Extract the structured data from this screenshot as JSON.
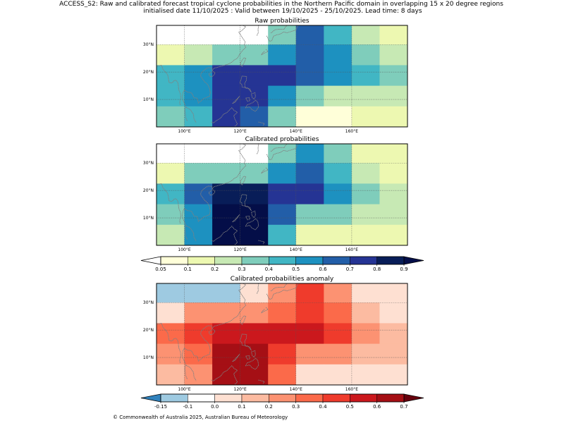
{
  "figure": {
    "title_line1": "ACCESS_S2: Raw and calibrated forecast tropical cyclone probabilities in the Northern Pacific domain in overlapping 15 x 20 degree regions",
    "title_line2": "initialised date 11/10/2025 :  Valid between 19/10/2025 - 25/10/2025. Lead time: 8 days",
    "footer": "© Commonwealth of Australia 2025, Australian Bureau of Meteorology"
  },
  "chart_data": [
    {
      "type": "heatmap",
      "title": "Raw probabilities",
      "x_ticks": [
        "100°E",
        "120°E",
        "140°E",
        "160°E"
      ],
      "y_ticks": [
        "30°N",
        "20°N",
        "10°N"
      ],
      "columns_lon_start": [
        90,
        100,
        110,
        120,
        130,
        140,
        150,
        160,
        170
      ],
      "rows_lat_start": [
        30,
        22.5,
        15,
        7.5,
        0
      ],
      "cell_width_deg": 10,
      "cell_height_deg": 7.5,
      "extent": {
        "lon": [
          90,
          180
        ],
        "lat": [
          0,
          37
        ]
      },
      "values": [
        [
          0.02,
          0.02,
          0.02,
          0.02,
          0.35,
          0.65,
          0.45,
          0.25,
          0.15
        ],
        [
          0.15,
          0.25,
          0.35,
          0.35,
          0.55,
          0.65,
          0.55,
          0.35,
          0.25
        ],
        [
          0.45,
          0.55,
          0.75,
          0.75,
          0.75,
          0.65,
          0.55,
          0.45,
          0.35
        ],
        [
          0.45,
          0.55,
          0.75,
          0.75,
          0.55,
          0.35,
          0.25,
          0.25,
          0.25
        ],
        [
          0.35,
          0.45,
          0.75,
          0.65,
          0.35,
          0.05,
          0.05,
          0.15,
          0.15
        ]
      ]
    },
    {
      "type": "heatmap",
      "title": "Calibrated probabilities",
      "x_ticks": [
        "100°E",
        "120°E",
        "140°E",
        "160°E"
      ],
      "y_ticks": [
        "30°N",
        "20°N",
        "10°N"
      ],
      "columns_lon_start": [
        90,
        100,
        110,
        120,
        130,
        140,
        150,
        160,
        170
      ],
      "rows_lat_start": [
        30,
        22.5,
        15,
        7.5,
        0
      ],
      "cell_width_deg": 10,
      "cell_height_deg": 7.5,
      "extent": {
        "lon": [
          90,
          180
        ],
        "lat": [
          0,
          37
        ]
      },
      "values": [
        [
          0.02,
          0.02,
          0.02,
          0.02,
          0.35,
          0.55,
          0.35,
          0.15,
          0.15
        ],
        [
          0.15,
          0.35,
          0.35,
          0.35,
          0.55,
          0.65,
          0.45,
          0.25,
          0.15
        ],
        [
          0.45,
          0.65,
          0.85,
          0.85,
          0.75,
          0.75,
          0.55,
          0.35,
          0.25
        ],
        [
          0.35,
          0.55,
          0.95,
          0.95,
          0.65,
          0.35,
          0.35,
          0.25,
          0.25
        ],
        [
          0.25,
          0.55,
          0.95,
          0.95,
          0.45,
          0.15,
          0.15,
          0.15,
          0.15
        ]
      ]
    },
    {
      "type": "heatmap",
      "title": "Calibrated probabilities anomaly",
      "x_ticks": [
        "100°E",
        "120°E",
        "140°E",
        "160°E"
      ],
      "y_ticks": [
        "30°N",
        "20°N",
        "10°N"
      ],
      "columns_lon_start": [
        90,
        100,
        110,
        120,
        130,
        140,
        150,
        160,
        170
      ],
      "rows_lat_start": [
        30,
        22.5,
        15,
        7.5,
        0
      ],
      "cell_width_deg": 10,
      "cell_height_deg": 7.5,
      "extent": {
        "lon": [
          90,
          180
        ],
        "lat": [
          0,
          37
        ]
      },
      "values": [
        [
          -0.12,
          -0.12,
          -0.12,
          0.0,
          0.25,
          0.45,
          0.25,
          0.0,
          0.0
        ],
        [
          0.0,
          0.2,
          0.2,
          0.2,
          0.35,
          0.45,
          0.3,
          0.1,
          0.0
        ],
        [
          0.35,
          0.45,
          0.55,
          0.55,
          0.55,
          0.55,
          0.45,
          0.2,
          0.1
        ],
        [
          0.2,
          0.35,
          0.65,
          0.65,
          0.45,
          0.2,
          0.2,
          0.1,
          0.1
        ],
        [
          0.1,
          0.25,
          0.65,
          0.65,
          0.35,
          0.0,
          0.0,
          0.0,
          0.0
        ]
      ]
    }
  ],
  "colorbars": {
    "probability": {
      "ticks": [
        "0.05",
        "0.1",
        "0.2",
        "0.3",
        "0.4",
        "0.5",
        "0.6",
        "0.7",
        "0.8",
        "0.9"
      ],
      "boundaries": [
        0.05,
        0.1,
        0.2,
        0.3,
        0.4,
        0.5,
        0.6,
        0.7,
        0.8,
        0.9
      ],
      "colors": [
        "#ffffd9",
        "#edf8b1",
        "#c7e9b4",
        "#7fcdbb",
        "#41b6c4",
        "#1d91c0",
        "#225ea8",
        "#253494",
        "#081d58"
      ],
      "under_color": "#ffffff",
      "over_color": "#040e48"
    },
    "anomaly": {
      "ticks": [
        "-0.15",
        "-0.1",
        "0.0",
        "0.1",
        "0.2",
        "0.3",
        "0.4",
        "0.5",
        "0.6",
        "0.7"
      ],
      "boundaries": [
        -0.15,
        -0.1,
        0.0,
        0.1,
        0.2,
        0.3,
        0.4,
        0.5,
        0.6,
        0.7
      ],
      "colors": [
        "#9ecae1",
        "#ffffff",
        "#fee0d2",
        "#fcbba1",
        "#fc9272",
        "#fb6a4a",
        "#ef3b2c",
        "#cb181d",
        "#a50f15"
      ],
      "under_color": "#3182bd",
      "over_color": "#67000d"
    }
  }
}
